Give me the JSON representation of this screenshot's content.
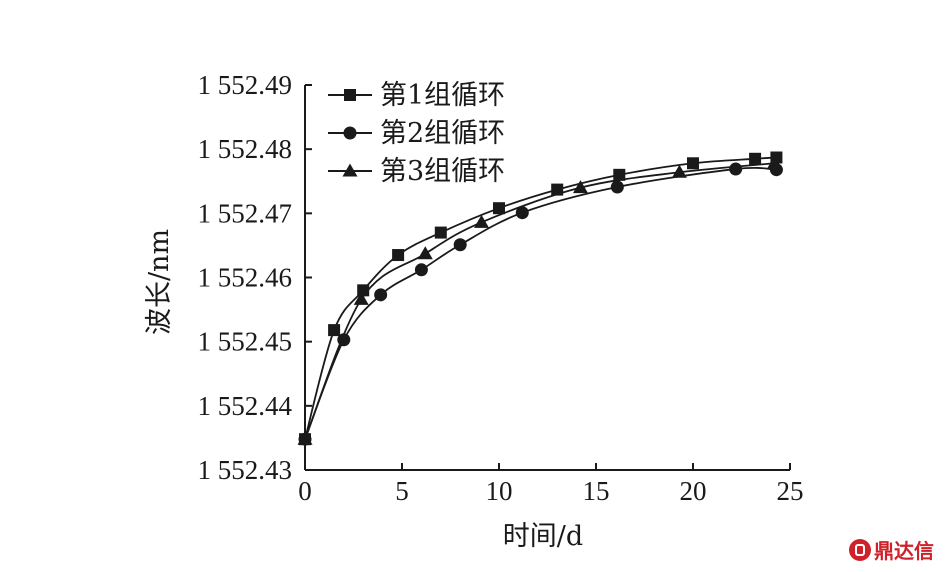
{
  "chart_data": {
    "type": "line",
    "xlabel": "时间/d",
    "ylabel": "波长/nm",
    "xlim": [
      0,
      25
    ],
    "ylim": [
      1552.43,
      1552.49
    ],
    "x_ticks": [
      0,
      5,
      10,
      15,
      20,
      25
    ],
    "x_tick_labels": [
      "0",
      "5",
      "10",
      "15",
      "20",
      "25"
    ],
    "y_ticks": [
      1552.43,
      1552.44,
      1552.45,
      1552.46,
      1552.47,
      1552.48,
      1552.49
    ],
    "y_tick_labels": [
      "1 552.43",
      "1 552.44",
      "1 552.45",
      "1 552.46",
      "1 552.47",
      "1 552.48",
      "1 552.49"
    ],
    "grid": false,
    "legend_position": "top-left",
    "series": [
      {
        "name": "第1组循环",
        "marker": "square",
        "x": [
          0,
          1.5,
          3,
          4.8,
          7,
          10,
          13,
          16.2,
          20,
          23.2,
          24.3
        ],
        "y": [
          1552.4348,
          1552.4518,
          1552.458,
          1552.4635,
          1552.467,
          1552.4708,
          1552.4737,
          1552.476,
          1552.4778,
          1552.4785,
          1552.4787
        ]
      },
      {
        "name": "第2组循环",
        "marker": "circle",
        "x": [
          0,
          2,
          3.9,
          6,
          8,
          11.2,
          16.1,
          22.2,
          24.3
        ],
        "y": [
          1552.4348,
          1552.4503,
          1552.4573,
          1552.4612,
          1552.4651,
          1552.4701,
          1552.4741,
          1552.4769,
          1552.4768
        ]
      },
      {
        "name": "第3组循环",
        "marker": "triangle",
        "x": [
          0,
          2.9,
          6.2,
          9.1,
          14.2,
          19.3,
          24.2
        ],
        "y": [
          1552.4348,
          1552.4566,
          1552.4637,
          1552.4686,
          1552.474,
          1552.4764,
          1552.4778
        ]
      }
    ]
  },
  "watermark": "鼎达信"
}
